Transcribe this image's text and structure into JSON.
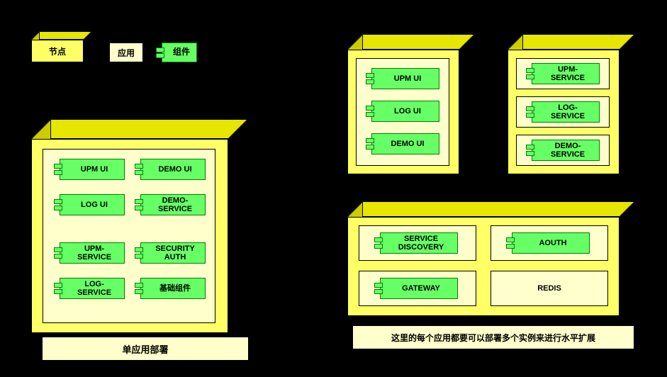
{
  "colors": {
    "bg": "#000000",
    "node_face": "#ffff66",
    "node_top": "#e6e600",
    "node_side": "#cccc00",
    "app_bg": "#ffffcc",
    "comp_bg": "#66ff66",
    "comp_border": "#008000",
    "caption_bg": "#ffffcc"
  },
  "legend": {
    "node_label": "节点",
    "app_label": "应用",
    "component_label": "组件"
  },
  "single_deploy": {
    "caption": "单应用部署",
    "components": [
      "UPM UI",
      "DEMO UI",
      "LOG UI",
      "DEMO-\nSERVICE",
      "UPM-\nSERVICE",
      "SECURITY\nAUTH",
      "LOG-\nSERVICE",
      "基础组件"
    ]
  },
  "multi_deploy": {
    "ui_node": [
      "UPM UI",
      "LOG UI",
      "DEMO UI"
    ],
    "service_node": [
      "UPM-\nSERVICE",
      "LOG-\nSERVICE",
      "DEMO-\nSERVICE"
    ],
    "infra_node": {
      "components": [
        "SERVICE\nDISCOVERY",
        "AOUTH",
        "GATEWAY"
      ],
      "plain": "REDIS"
    },
    "caption": "这里的每个应用都要可以部署多个实例来进行水平扩展"
  }
}
